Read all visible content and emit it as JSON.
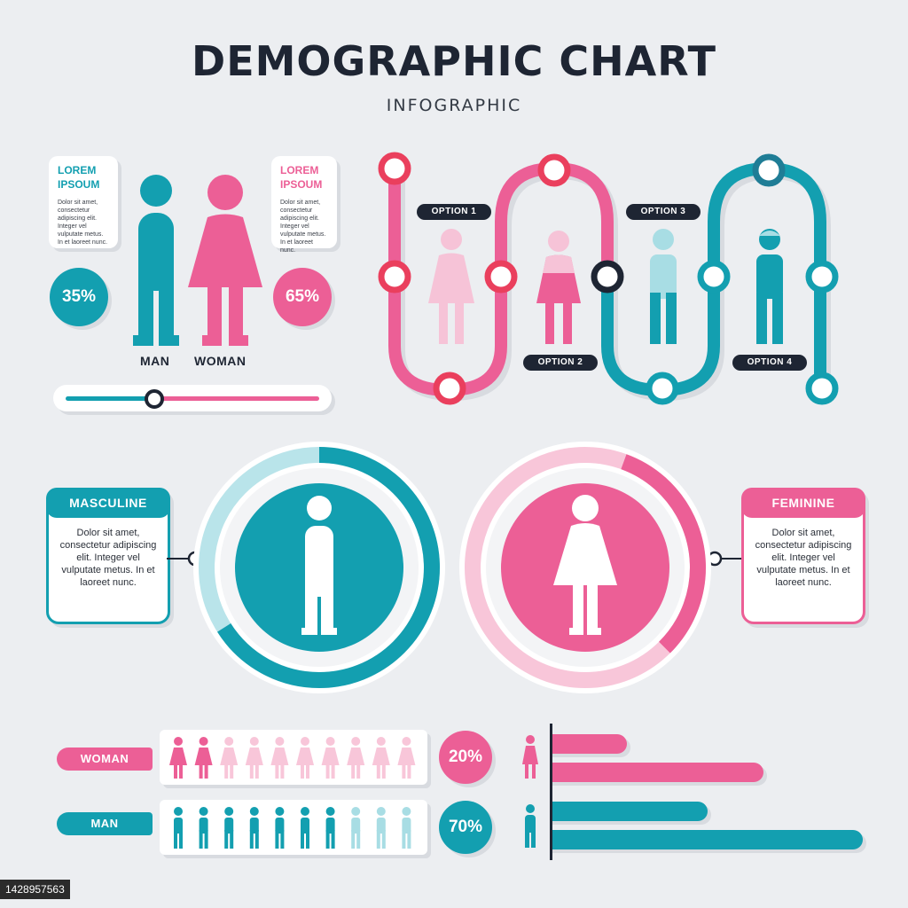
{
  "header": {
    "title": "DEMOGRAPHIC CHART",
    "subtitle": "INFOGRAPHIC"
  },
  "colors": {
    "teal": "#139fb0",
    "pink": "#ec5f96",
    "red": "#ea3f5d",
    "navy": "#1e2533",
    "light_teal": "#b9e4ea",
    "light_pink": "#f8c6d9"
  },
  "gender_split": {
    "man": {
      "label": "MAN",
      "percent_label": "35%",
      "value": 35
    },
    "woman": {
      "label": "WOMAN",
      "percent_label": "65%",
      "value": 65
    },
    "left_bubble": {
      "title": "LOREM IPSOUM",
      "body": "Dolor sit amet, consectetur adipiscing elit. Integer vel vulputate metus. In et laoreet nunc."
    },
    "right_bubble": {
      "title": "LOREM IPSOUM",
      "body": "Dolor sit amet, consectetur adipiscing elit. Integer vel vulputate metus. In et laoreet nunc."
    },
    "slider_fraction": 0.35
  },
  "options": [
    {
      "label": "OPTION 1",
      "figure": "woman",
      "color": "#f6c3d7"
    },
    {
      "label": "OPTION 2",
      "figure": "woman",
      "color": "#ec5f96"
    },
    {
      "label": "OPTION 3",
      "figure": "man",
      "color": "#a8dde4"
    },
    {
      "label": "OPTION 4",
      "figure": "man",
      "color": "#139fb0"
    }
  ],
  "rings": {
    "masculine": {
      "title": "MASCULINE",
      "body": "Dolor sit amet, consectetur adipiscing elit. Integer vel vulputate metus. In et laoreet nunc.",
      "fraction": 0.66
    },
    "feminine": {
      "title": "FEMININE",
      "body": "Dolor sit amet, consectetur adipiscing elit. Integer vel vulputate metus. In et laoreet nunc.",
      "fraction": 0.32
    }
  },
  "pictograph": {
    "woman": {
      "label": "WOMAN",
      "percent_label": "20%",
      "filled": 2,
      "total": 10
    },
    "man": {
      "label": "MAN",
      "percent_label": "70%",
      "filled": 7,
      "total": 10
    }
  },
  "bars": {
    "woman": [
      0.24,
      0.68
    ],
    "man": [
      0.5,
      1.0
    ]
  },
  "watermark": {
    "stock_id": "1428957563"
  }
}
